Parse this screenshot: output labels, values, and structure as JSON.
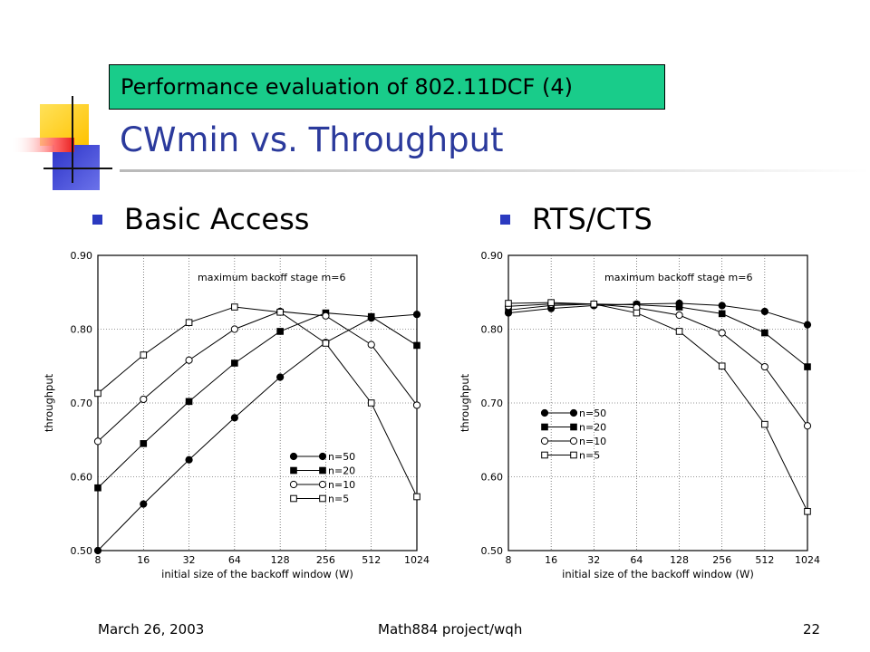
{
  "slide": {
    "header_box": "Performance evaluation of 802.11DCF (4)",
    "title": "CWmin vs. Throughput",
    "bullets": [
      "Basic Access",
      "RTS/CTS"
    ],
    "footer": {
      "date": "March 26, 2003",
      "project": "Math884 project/wqh",
      "page": "22"
    }
  },
  "colors": {
    "header_box_fill": "#19cc8a",
    "title_text": "#2b3a9c",
    "bullet": "#2b3ac0",
    "deco_yellow": "#ffd21a",
    "deco_blue": "#3f46d6",
    "deco_red": "#f03a3a"
  },
  "chart_data": [
    {
      "type": "line",
      "annotation": "maximum backoff stage m=6",
      "xlabel": "initial size of the backoff window (W)",
      "ylabel": "throughput",
      "categories": [
        "8",
        "16",
        "32",
        "64",
        "128",
        "256",
        "512",
        "1024"
      ],
      "ylim": [
        0.5,
        0.9
      ],
      "yticks": [
        "0.50",
        "0.60",
        "0.70",
        "0.80",
        "0.90"
      ],
      "grid": true,
      "legend_position": "lower-right",
      "series": [
        {
          "name": "n=50",
          "marker": "filled-circle",
          "values": [
            0.5,
            0.563,
            0.623,
            0.68,
            0.735,
            0.782,
            0.815,
            0.82
          ]
        },
        {
          "name": "n=20",
          "marker": "filled-square",
          "values": [
            0.585,
            0.645,
            0.702,
            0.754,
            0.797,
            0.822,
            0.817,
            0.778
          ]
        },
        {
          "name": "n=10",
          "marker": "open-circle",
          "values": [
            0.648,
            0.705,
            0.758,
            0.8,
            0.824,
            0.818,
            0.779,
            0.697
          ]
        },
        {
          "name": "n=5",
          "marker": "open-square",
          "values": [
            0.713,
            0.765,
            0.809,
            0.83,
            0.823,
            0.781,
            0.7,
            0.573
          ]
        }
      ]
    },
    {
      "type": "line",
      "annotation": "maximum backoff stage m=6",
      "xlabel": "initial size of the backoff window (W)",
      "ylabel": "throughput",
      "categories": [
        "8",
        "16",
        "32",
        "64",
        "128",
        "256",
        "512",
        "1024"
      ],
      "ylim": [
        0.5,
        0.9
      ],
      "yticks": [
        "0.50",
        "0.60",
        "0.70",
        "0.80",
        "0.90"
      ],
      "grid": true,
      "legend_position": "lower-left",
      "series": [
        {
          "name": "n=50",
          "marker": "filled-circle",
          "values": [
            0.822,
            0.828,
            0.832,
            0.834,
            0.835,
            0.832,
            0.824,
            0.806
          ]
        },
        {
          "name": "n=20",
          "marker": "filled-square",
          "values": [
            0.826,
            0.832,
            0.834,
            0.833,
            0.83,
            0.821,
            0.795,
            0.749
          ]
        },
        {
          "name": "n=10",
          "marker": "open-circle",
          "values": [
            0.831,
            0.834,
            0.834,
            0.829,
            0.819,
            0.795,
            0.749,
            0.669
          ]
        },
        {
          "name": "n=5",
          "marker": "open-square",
          "values": [
            0.835,
            0.836,
            0.834,
            0.822,
            0.797,
            0.75,
            0.671,
            0.553
          ]
        }
      ]
    }
  ]
}
